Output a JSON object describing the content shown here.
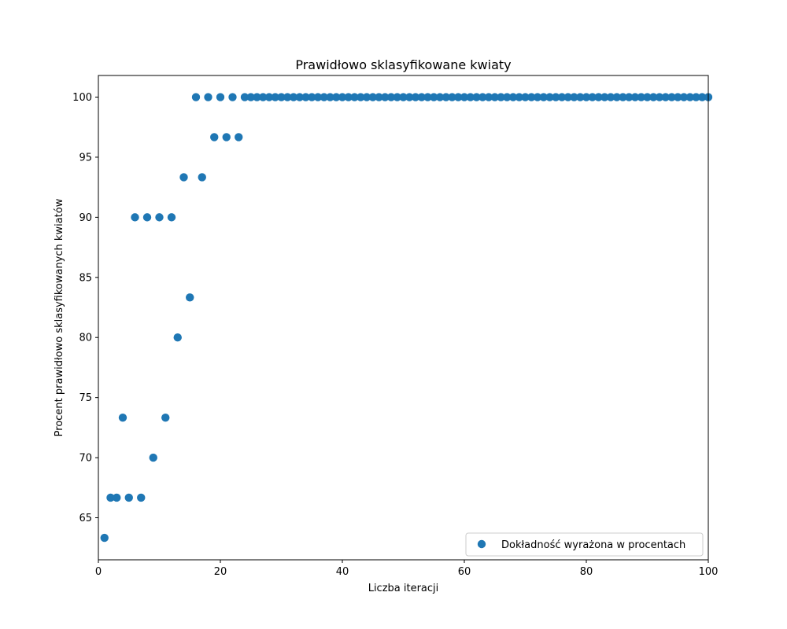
{
  "chart_data": {
    "type": "scatter",
    "title": "Prawidłowo sklasyfikowane kwiaty",
    "xlabel": "Liczba iteracji",
    "ylabel": "Procent prawidłowo sklasyfikowanych kwiatów",
    "xlim": [
      0,
      100
    ],
    "ylim": [
      61.5,
      101.8
    ],
    "xticks": [
      0,
      20,
      40,
      60,
      80,
      100
    ],
    "yticks": [
      65,
      70,
      75,
      80,
      85,
      90,
      95,
      100
    ],
    "grid": false,
    "legend_position": "bottom-right",
    "color": "#1f77b4",
    "series": [
      {
        "name": "Dokładność wyrażona w procentach",
        "x": [
          1,
          2,
          3,
          4,
          5,
          6,
          7,
          8,
          9,
          10,
          11,
          12,
          13,
          14,
          15,
          16,
          17,
          18,
          19,
          20,
          21,
          22,
          23,
          24,
          25,
          26,
          27,
          28,
          29,
          30,
          31,
          32,
          33,
          34,
          35,
          36,
          37,
          38,
          39,
          40,
          41,
          42,
          43,
          44,
          45,
          46,
          47,
          48,
          49,
          50,
          51,
          52,
          53,
          54,
          55,
          56,
          57,
          58,
          59,
          60,
          61,
          62,
          63,
          64,
          65,
          66,
          67,
          68,
          69,
          70,
          71,
          72,
          73,
          74,
          75,
          76,
          77,
          78,
          79,
          80,
          81,
          82,
          83,
          84,
          85,
          86,
          87,
          88,
          89,
          90,
          91,
          92,
          93,
          94,
          95,
          96,
          97,
          98,
          99,
          100
        ],
        "y": [
          63.33,
          66.67,
          66.67,
          73.33,
          66.67,
          90,
          66.67,
          90,
          70,
          90,
          73.33,
          90,
          80,
          93.33,
          83.33,
          100,
          93.33,
          100,
          96.67,
          100,
          96.67,
          100,
          96.67,
          100,
          100,
          100,
          100,
          100,
          100,
          100,
          100,
          100,
          100,
          100,
          100,
          100,
          100,
          100,
          100,
          100,
          100,
          100,
          100,
          100,
          100,
          100,
          100,
          100,
          100,
          100,
          100,
          100,
          100,
          100,
          100,
          100,
          100,
          100,
          100,
          100,
          100,
          100,
          100,
          100,
          100,
          100,
          100,
          100,
          100,
          100,
          100,
          100,
          100,
          100,
          100,
          100,
          100,
          100,
          100,
          100,
          100,
          100,
          100,
          100,
          100,
          100,
          100,
          100,
          100,
          100,
          100,
          100,
          100,
          100,
          100,
          100,
          100,
          100,
          100,
          100
        ]
      }
    ]
  }
}
